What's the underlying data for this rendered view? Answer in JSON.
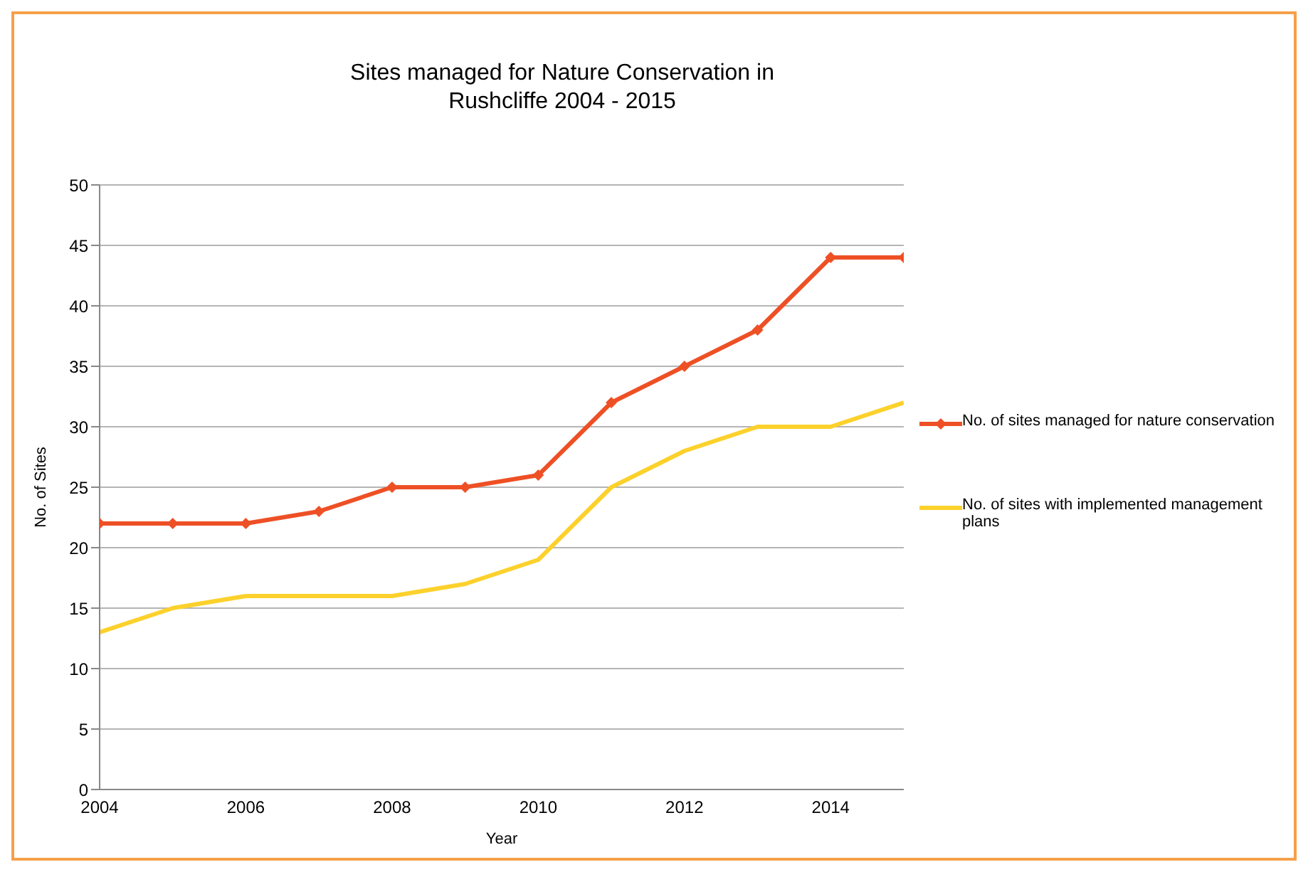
{
  "chart_data": {
    "type": "line",
    "title": "Sites managed for Nature Conservation in Rushcliffe 2004 - 2015",
    "xlabel": "Year",
    "ylabel": "No. of Sites",
    "x": [
      2004,
      2005,
      2006,
      2007,
      2008,
      2009,
      2010,
      2011,
      2012,
      2013,
      2014,
      2015
    ],
    "series": [
      {
        "name": "No. of sites managed for nature conservation",
        "color": "#ee5025",
        "marker": "diamond",
        "values": [
          22,
          22,
          22,
          23,
          25,
          25,
          26,
          32,
          35,
          38,
          44,
          44
        ]
      },
      {
        "name": "No. of sites with implemented management plans",
        "color": "#fcd12c",
        "marker": "none",
        "values": [
          13,
          15,
          16,
          16,
          16,
          17,
          19,
          25,
          28,
          30,
          30,
          32
        ]
      }
    ],
    "xlim": [
      2004,
      2015
    ],
    "xticks": [
      2004,
      2006,
      2008,
      2010,
      2012,
      2014
    ],
    "ylim": [
      0,
      50
    ],
    "yticks": [
      0,
      5,
      10,
      15,
      20,
      25,
      30,
      35,
      40,
      45,
      50
    ],
    "grid": "y",
    "legend": "right",
    "line_style": "solid"
  }
}
